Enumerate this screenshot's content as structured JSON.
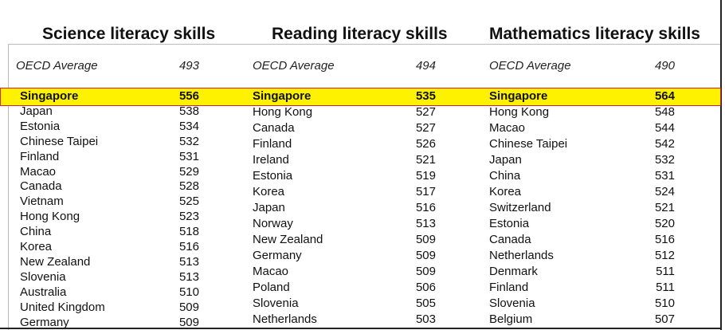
{
  "table": {
    "columns": [
      {
        "title": "Science literacy skills",
        "oecd_label": "OECD Average",
        "oecd_value": 493,
        "rows": [
          [
            "Singapore",
            556
          ],
          [
            "Japan",
            538
          ],
          [
            "Estonia",
            534
          ],
          [
            "Chinese Taipei",
            532
          ],
          [
            "Finland",
            531
          ],
          [
            "Macao",
            529
          ],
          [
            "Canada",
            528
          ],
          [
            "Vietnam",
            525
          ],
          [
            "Hong Kong",
            523
          ],
          [
            "China",
            518
          ],
          [
            "Korea",
            516
          ],
          [
            "New Zealand",
            513
          ],
          [
            "Slovenia",
            513
          ],
          [
            "Australia",
            510
          ],
          [
            "United Kingdom",
            509
          ],
          [
            "Germany",
            509
          ]
        ]
      },
      {
        "title": "Reading literacy skills",
        "oecd_label": "OECD Average",
        "oecd_value": 494,
        "rows": [
          [
            "Singapore",
            535
          ],
          [
            "Hong Kong",
            527
          ],
          [
            "Canada",
            527
          ],
          [
            "Finland",
            526
          ],
          [
            "Ireland",
            521
          ],
          [
            "Estonia",
            519
          ],
          [
            "Korea",
            517
          ],
          [
            "Japan",
            516
          ],
          [
            "Norway",
            513
          ],
          [
            "New Zealand",
            509
          ],
          [
            "Germany",
            509
          ],
          [
            "Macao",
            509
          ],
          [
            "Poland",
            506
          ],
          [
            "Slovenia",
            505
          ],
          [
            "Netherlands",
            503
          ]
        ]
      },
      {
        "title": "Mathematics literacy skills",
        "oecd_label": "OECD Average",
        "oecd_value": 490,
        "rows": [
          [
            "Singapore",
            564
          ],
          [
            "Hong Kong",
            548
          ],
          [
            "Macao",
            544
          ],
          [
            "Chinese Taipei",
            542
          ],
          [
            "Japan",
            532
          ],
          [
            "China",
            531
          ],
          [
            "Korea",
            524
          ],
          [
            "Switzerland",
            521
          ],
          [
            "Estonia",
            520
          ],
          [
            "Canada",
            516
          ],
          [
            "Netherlands",
            512
          ],
          [
            "Denmark",
            511
          ],
          [
            "Finland",
            511
          ],
          [
            "Slovenia",
            510
          ],
          [
            "Belgium",
            507
          ]
        ]
      }
    ]
  }
}
